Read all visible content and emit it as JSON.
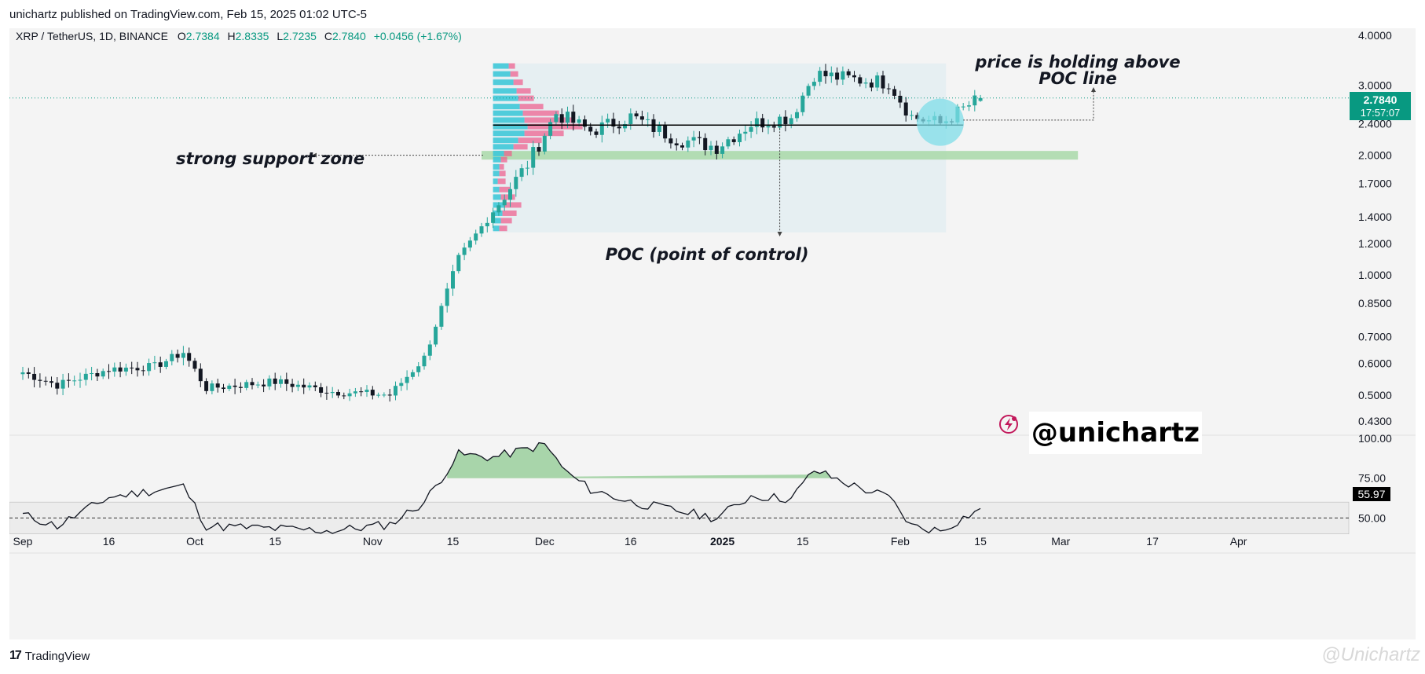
{
  "header": {
    "published_by": "unichartz published on TradingView.com, Feb 15, 2025 01:02 UTC-5"
  },
  "legend": {
    "symbol": "XRP / TetherUS, 1D, BINANCE",
    "o_label": "O",
    "o_value": "2.7384",
    "h_label": "H",
    "h_value": "2.8335",
    "l_label": "L",
    "l_value": "2.7235",
    "c_label": "C",
    "c_value": "2.7840",
    "change": "+0.0456 (+1.67%)"
  },
  "price_badge": {
    "price": "2.7840",
    "countdown": "17:57:07"
  },
  "rsi_badge": "55.97",
  "annotations": {
    "support": "strong support zone",
    "poc": "POC (point of control)",
    "holding_line1": "price is holding above",
    "holding_line2": "POC line"
  },
  "brand": "@unichartz",
  "footer": {
    "logo_text": "TradingView"
  },
  "watermark": "@Unichartz",
  "colors": {
    "up": "#26a69a",
    "down": "#131722",
    "volume_profile_up": "#3fc8d8",
    "volume_profile_down": "#ee5a8a",
    "support_zone": "#a8d8a8",
    "value_area": "#e2eef2",
    "badge_price": "#089981",
    "poc_circle": "#7fdde8"
  },
  "chart_data": [
    {
      "type": "candlestick",
      "title": "",
      "y_scale": "log",
      "price_ticks": [
        "4.0000",
        "3.0000",
        "2.4000",
        "2.0000",
        "1.7000",
        "1.4000",
        "1.2000",
        "1.0000",
        "0.8500",
        "0.7000",
        "0.6000",
        "0.5000",
        "0.4300"
      ],
      "x_ticks": [
        "Sep",
        "16",
        "Oct",
        "15",
        "Nov",
        "15",
        "Dec",
        "16",
        "2025",
        "15",
        "Feb",
        "15",
        "Mar",
        "17",
        "Apr"
      ],
      "ohlc_anchor_closes": [
        [
          "2024-09-01",
          0.57
        ],
        [
          "2024-09-07",
          0.53
        ],
        [
          "2024-09-16",
          0.58
        ],
        [
          "2024-09-24",
          0.59
        ],
        [
          "2024-09-29",
          0.64
        ],
        [
          "2024-10-03",
          0.52
        ],
        [
          "2024-10-15",
          0.54
        ],
        [
          "2024-10-25",
          0.51
        ],
        [
          "2024-11-04",
          0.5
        ],
        [
          "2024-11-10",
          0.62
        ],
        [
          "2024-11-16",
          1.1
        ],
        [
          "2024-11-22",
          1.45
        ],
        [
          "2024-11-28",
          1.9
        ],
        [
          "2024-12-03",
          2.55
        ],
        [
          "2024-12-09",
          2.3
        ],
        [
          "2024-12-16",
          2.5
        ],
        [
          "2024-12-24",
          2.2
        ],
        [
          "2024-12-31",
          2.1
        ],
        [
          "2025-01-06",
          2.4
        ],
        [
          "2025-01-13",
          2.5
        ],
        [
          "2025-01-17",
          3.2
        ],
        [
          "2025-01-24",
          3.1
        ],
        [
          "2025-01-30",
          3.05
        ],
        [
          "2025-02-03",
          2.5
        ],
        [
          "2025-02-08",
          2.4
        ],
        [
          "2025-02-15",
          2.784
        ]
      ],
      "last": {
        "open": 2.7384,
        "high": 2.8335,
        "low": 2.7235,
        "close": 2.784
      },
      "poc_level": 2.38,
      "support_zone": [
        1.95,
        2.05
      ],
      "value_area_range": [
        1.28,
        3.4
      ]
    },
    {
      "type": "line",
      "title": "",
      "ylim": [
        30,
        100
      ],
      "ticks": [
        "100.00",
        "75.00",
        "50.00"
      ],
      "reference_level": 50,
      "band": [
        40,
        60
      ],
      "last_value": 55.97,
      "anchor_values": [
        [
          "2024-09-01",
          52
        ],
        [
          "2024-09-07",
          45
        ],
        [
          "2024-09-16",
          63
        ],
        [
          "2024-09-29",
          70
        ],
        [
          "2024-10-03",
          45
        ],
        [
          "2024-10-25",
          42
        ],
        [
          "2024-11-04",
          46
        ],
        [
          "2024-11-10",
          60
        ],
        [
          "2024-11-16",
          90
        ],
        [
          "2024-11-22",
          88
        ],
        [
          "2024-12-01",
          96
        ],
        [
          "2024-12-05",
          78
        ],
        [
          "2024-12-09",
          68
        ],
        [
          "2024-12-16",
          60
        ],
        [
          "2024-12-31",
          50
        ],
        [
          "2025-01-06",
          64
        ],
        [
          "2025-01-13",
          62
        ],
        [
          "2025-01-17",
          80
        ],
        [
          "2025-01-24",
          70
        ],
        [
          "2025-01-30",
          63
        ],
        [
          "2025-02-03",
          45
        ],
        [
          "2025-02-08",
          42
        ],
        [
          "2025-02-15",
          55.97
        ]
      ]
    }
  ]
}
